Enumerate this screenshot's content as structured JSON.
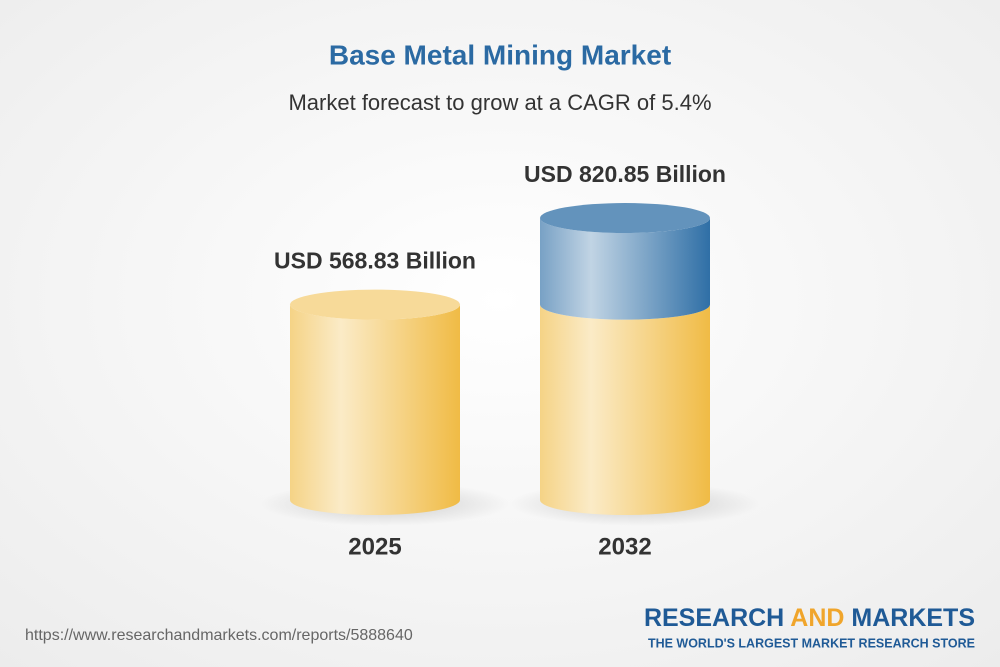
{
  "chart_data": {
    "type": "cylinder",
    "title": "Base Metal Mining Market",
    "subtitle": "Market forecast to grow at a CAGR of 5.4%",
    "categories": [
      "2025",
      "2032"
    ],
    "values": [
      568.83,
      820.85
    ],
    "value_labels": [
      "USD 568.83 Billion",
      "USD 820.85 Billion"
    ],
    "color": "#f0bb45",
    "growth_color": "#2f6fa6"
  },
  "footer": {
    "url": "https://www.researchandmarkets.com/reports/5888640",
    "brand": [
      "RESEARCH",
      "AND",
      "MARKETS"
    ],
    "tagline": "THE WORLD'S LARGEST MARKET RESEARCH STORE"
  }
}
